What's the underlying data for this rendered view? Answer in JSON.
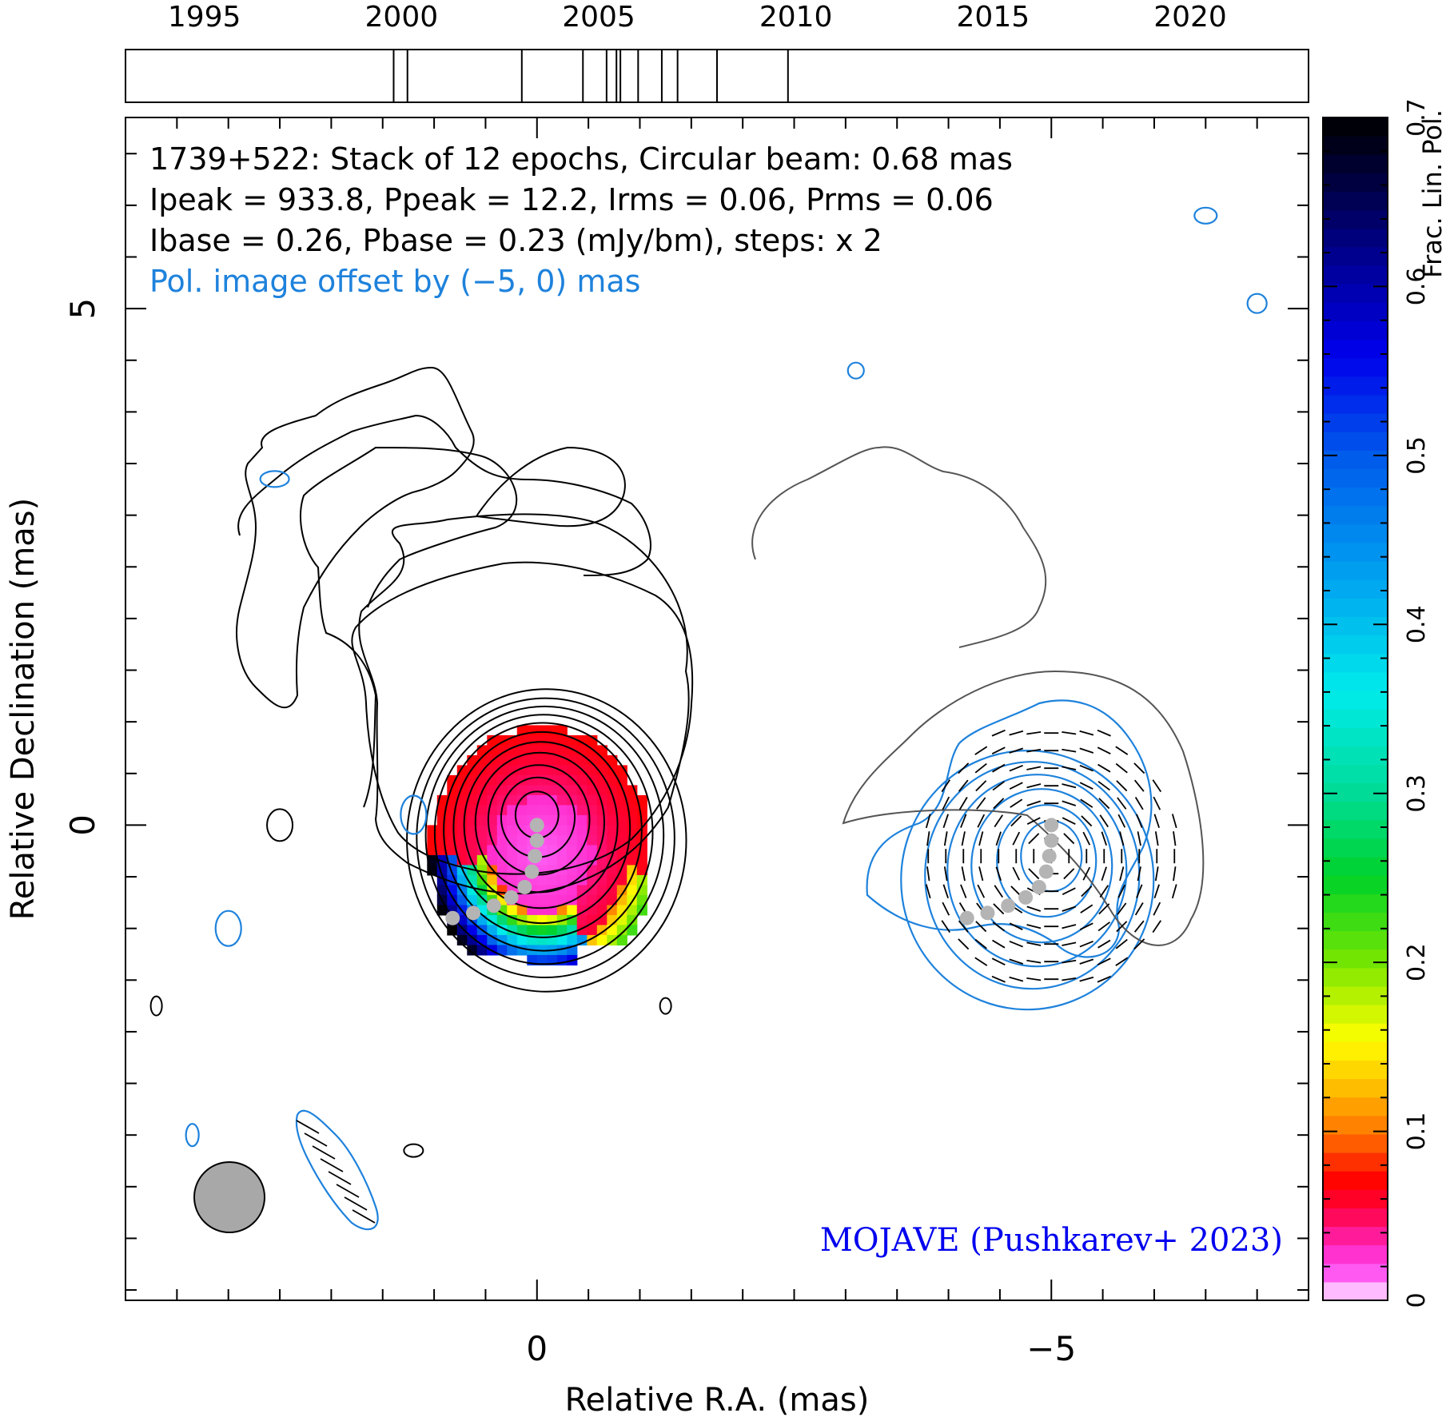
{
  "timeline": {
    "years": [
      1995,
      2000,
      2005,
      2010,
      2015,
      2020
    ],
    "epochs": [
      1999.8,
      2000.15,
      2003.05,
      2004.6,
      2005.2,
      2005.45,
      2005.55,
      2006.0,
      2006.6,
      2007.0,
      2008.0,
      2009.8
    ]
  },
  "chart_data": {
    "type": "heatmap",
    "title_lines": [
      "1739+522: Stack of 12 epochs, Circular beam: 0.68 mas",
      "Ipeak = 933.8, Ppeak = 12.2, Irms = 0.06, Prms = 0.06",
      "Ibase = 0.26, Pbase = 0.23 (mJy/bm), steps: x 2"
    ],
    "offset_note": "Pol. image offset by (−5, 0) mas",
    "credit": "MOJAVE (Pushkarev+ 2023)",
    "xlabel": "Relative R.A. (mas)",
    "ylabel": "Relative Declination (mas)",
    "xlim": [
      4,
      -7.5
    ],
    "ylim": [
      -4.6,
      6.85
    ],
    "x_ticks": [
      {
        "value": 0,
        "label": "0"
      },
      {
        "value": -5,
        "label": "−5"
      }
    ],
    "y_ticks": [
      {
        "value": 0,
        "label": "0"
      },
      {
        "value": 5,
        "label": "5"
      }
    ],
    "colorbar": {
      "label": "Frac. Lin. Pol.",
      "range": [
        0,
        0.7
      ],
      "ticks": [
        {
          "value": 0,
          "label": "0"
        },
        {
          "value": 0.1,
          "label": "0.1"
        },
        {
          "value": 0.2,
          "label": "0.2"
        },
        {
          "value": 0.3,
          "label": "0.3"
        },
        {
          "value": 0.4,
          "label": "0.4"
        },
        {
          "value": 0.5,
          "label": "0.5"
        },
        {
          "value": 0.6,
          "label": "0.6"
        },
        {
          "value": 0.7,
          "label": "0.7"
        }
      ]
    },
    "beam_diameter_mas": 0.68,
    "pol_offset_mas": -5,
    "core_track": [
      [
        0.0,
        0.0
      ],
      [
        0.0,
        -0.15
      ],
      [
        0.02,
        -0.3
      ],
      [
        0.05,
        -0.45
      ],
      [
        0.12,
        -0.6
      ],
      [
        0.25,
        -0.7
      ],
      [
        0.42,
        -0.78
      ],
      [
        0.62,
        -0.85
      ],
      [
        0.82,
        -0.9
      ]
    ],
    "colors": {
      "stokes_i_contour": "#000000",
      "pol_contour": "#1e82dc",
      "offset_note": "#1e82dc",
      "credit": "#0000ee",
      "core_track": "#b4b4b4",
      "beam": "#a8a8a8"
    }
  }
}
